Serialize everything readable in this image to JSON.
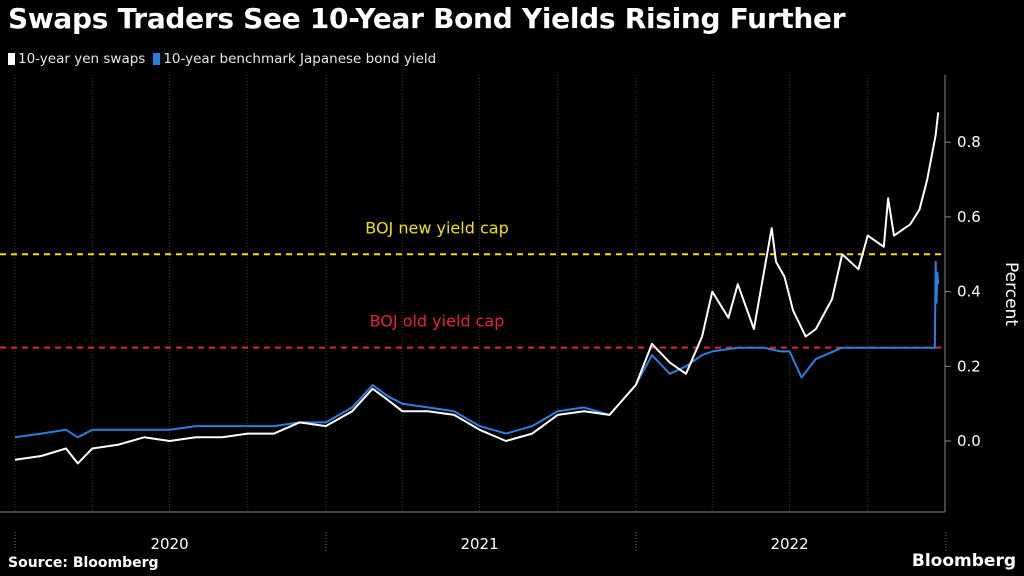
{
  "title": "Swaps Traders See 10-Year Bond Yields Rising Further",
  "source": "Source: Bloomberg",
  "brand": "Bloomberg",
  "chart_data": {
    "type": "line",
    "title": "Swaps Traders See 10-Year Bond Yields Rising Further",
    "ylabel": "Percent",
    "xlabel": "",
    "ylim": [
      -0.19,
      0.98
    ],
    "xlim": [
      "2020-01-01",
      "2022-12-31"
    ],
    "y_ticks": [
      "0.0",
      "0.2",
      "0.4",
      "0.6",
      "0.8"
    ],
    "y_tick_values": [
      0.0,
      0.2,
      0.4,
      0.6,
      0.8
    ],
    "x_tick_labels": [
      "2020",
      "2021",
      "2022"
    ],
    "grid": "vertical",
    "legend": "top-left",
    "series": [
      {
        "name": "10-year yen swaps",
        "color": "#ffffff",
        "x": [
          "2020-01-01",
          "2020-02-01",
          "2020-03-01",
          "2020-03-15",
          "2020-04-01",
          "2020-05-01",
          "2020-06-01",
          "2020-07-01",
          "2020-08-01",
          "2020-09-01",
          "2020-10-01",
          "2020-11-01",
          "2020-12-01",
          "2021-01-01",
          "2021-02-01",
          "2021-02-25",
          "2021-03-15",
          "2021-04-01",
          "2021-05-01",
          "2021-06-01",
          "2021-07-01",
          "2021-08-01",
          "2021-09-01",
          "2021-10-01",
          "2021-11-01",
          "2021-12-01",
          "2022-01-01",
          "2022-01-20",
          "2022-02-10",
          "2022-03-01",
          "2022-03-20",
          "2022-04-01",
          "2022-04-20",
          "2022-05-01",
          "2022-05-20",
          "2022-06-10",
          "2022-06-15",
          "2022-06-25",
          "2022-07-05",
          "2022-07-20",
          "2022-08-01",
          "2022-08-20",
          "2022-09-01",
          "2022-09-20",
          "2022-10-01",
          "2022-10-20",
          "2022-10-25",
          "2022-11-01",
          "2022-11-20",
          "2022-12-01",
          "2022-12-10",
          "2022-12-20",
          "2022-12-23"
        ],
        "values": [
          -0.05,
          -0.04,
          -0.02,
          -0.06,
          -0.02,
          -0.01,
          0.01,
          0.0,
          0.01,
          0.01,
          0.02,
          0.02,
          0.05,
          0.04,
          0.08,
          0.14,
          0.11,
          0.08,
          0.08,
          0.07,
          0.03,
          0.0,
          0.02,
          0.07,
          0.08,
          0.07,
          0.15,
          0.26,
          0.21,
          0.18,
          0.28,
          0.4,
          0.33,
          0.42,
          0.3,
          0.57,
          0.48,
          0.44,
          0.35,
          0.28,
          0.3,
          0.38,
          0.5,
          0.46,
          0.55,
          0.52,
          0.65,
          0.55,
          0.58,
          0.62,
          0.7,
          0.82,
          0.88
        ]
      },
      {
        "name": "10-year benchmark Japanese bond yield",
        "color": "#2a7fe2",
        "x": [
          "2020-01-01",
          "2020-02-01",
          "2020-03-01",
          "2020-03-15",
          "2020-04-01",
          "2020-05-01",
          "2020-06-01",
          "2020-07-01",
          "2020-08-01",
          "2020-09-01",
          "2020-10-01",
          "2020-11-01",
          "2020-12-01",
          "2021-01-01",
          "2021-02-01",
          "2021-02-25",
          "2021-03-15",
          "2021-04-01",
          "2021-05-01",
          "2021-06-01",
          "2021-07-01",
          "2021-08-01",
          "2021-09-01",
          "2021-10-01",
          "2021-11-01",
          "2021-12-01",
          "2022-01-01",
          "2022-01-20",
          "2022-02-10",
          "2022-03-01",
          "2022-03-20",
          "2022-04-01",
          "2022-05-01",
          "2022-06-01",
          "2022-06-20",
          "2022-07-01",
          "2022-07-15",
          "2022-08-01",
          "2022-09-01",
          "2022-10-01",
          "2022-11-01",
          "2022-12-01",
          "2022-12-19",
          "2022-12-20",
          "2022-12-21",
          "2022-12-22",
          "2022-12-23"
        ],
        "values": [
          0.01,
          0.02,
          0.03,
          0.01,
          0.03,
          0.03,
          0.03,
          0.03,
          0.04,
          0.04,
          0.04,
          0.04,
          0.05,
          0.05,
          0.09,
          0.15,
          0.12,
          0.1,
          0.09,
          0.08,
          0.04,
          0.02,
          0.04,
          0.08,
          0.09,
          0.07,
          0.15,
          0.23,
          0.18,
          0.2,
          0.23,
          0.24,
          0.25,
          0.25,
          0.24,
          0.24,
          0.17,
          0.22,
          0.25,
          0.25,
          0.25,
          0.25,
          0.25,
          0.48,
          0.37,
          0.45,
          0.42
        ]
      }
    ],
    "reference_lines": [
      {
        "label": "BOJ new yield cap",
        "value": 0.5,
        "color": "#f2e000"
      },
      {
        "label": "BOJ old yield cap",
        "value": 0.25,
        "color": "#e8213b"
      }
    ]
  }
}
